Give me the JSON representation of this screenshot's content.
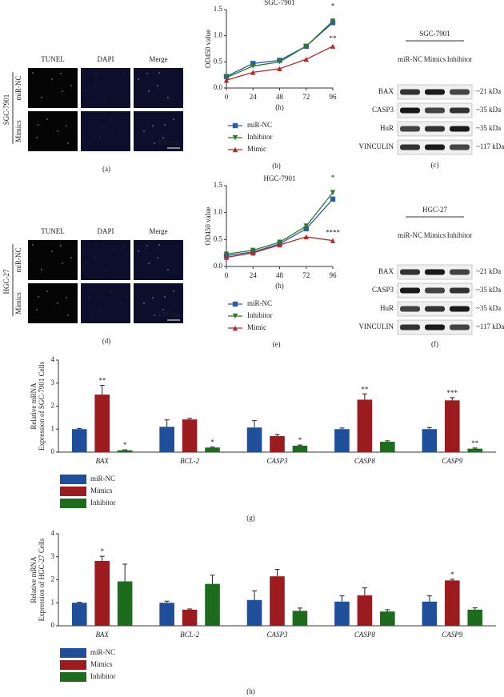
{
  "panels": [
    {
      "label": "(a)",
      "cell_line": "SGC-7901",
      "rows": [
        "miR-NC",
        "Mimics"
      ],
      "columns": [
        "TUNEL",
        "DAPI",
        "Merge"
      ],
      "scale_bar": "100 μm"
    },
    {
      "label": "(d)",
      "cell_line": "HGC-27",
      "rows": [
        "miR-NC",
        "Mimics"
      ],
      "columns": [
        "TUNEL",
        "DAPI",
        "Merge"
      ],
      "scale_bar": "100 μm"
    }
  ],
  "blots": [
    {
      "label": "(c)",
      "cell_line": "SGC-7901",
      "lanes": [
        "miR-NC",
        "Mimics",
        "Inhibitor"
      ],
      "proteins": [
        "BAX",
        "CASP3",
        "HuR",
        "VINCULIN"
      ],
      "sizes": [
        "~21 kDa",
        "~35 kDa",
        "~35 kDa",
        "~117 kDa"
      ]
    },
    {
      "label": "(f)",
      "cell_line": "HGC-27",
      "lanes": [
        "miR-NC",
        "Mimics",
        "Inhibitor"
      ],
      "proteins": [
        "BAX",
        "CASP3",
        "HuR",
        "VINCULIN"
      ],
      "sizes": [
        "~21 kDa",
        "~35 kDa",
        "~35 kDa",
        "~117 kDa"
      ]
    }
  ],
  "chart_data": [
    {
      "type": "line",
      "title": "SGC-7901",
      "panel_label": "(b)",
      "xlabel": "(h)",
      "ylabel": "OD450 value",
      "x": [
        0,
        24,
        48,
        72,
        96
      ],
      "xlim": [
        0,
        96
      ],
      "xticks": [
        0,
        24,
        48,
        72,
        96
      ],
      "ylim": [
        0,
        1.5
      ],
      "yticks": [
        {
          "value": 0,
          "label": "0.0"
        },
        0.5,
        {
          "value": 1,
          "label": "1.0"
        },
        1.5
      ],
      "series": [
        {
          "name": "miR-NC",
          "color": "#2b5ea7",
          "marker": "square",
          "values": [
            0.22,
            0.47,
            0.53,
            0.8,
            1.25
          ],
          "point_labels": [
            null,
            null,
            null,
            null,
            null
          ]
        },
        {
          "name": "Inhibitor",
          "color": "#2a7a2a",
          "marker": "triangle-down",
          "values": [
            0.2,
            0.42,
            0.5,
            0.8,
            1.28
          ],
          "point_labels": [
            null,
            null,
            null,
            null,
            "*"
          ]
        },
        {
          "name": "Mimic",
          "color": "#b22c2c",
          "marker": "triangle-up",
          "values": [
            0.15,
            0.3,
            0.37,
            0.55,
            0.8
          ],
          "point_labels": [
            null,
            null,
            null,
            null,
            "**"
          ]
        }
      ]
    },
    {
      "type": "line",
      "title": "HGC-7901",
      "panel_label": "(e)",
      "xlabel": "(h)",
      "ylabel": "OD450 value",
      "x": [
        0,
        24,
        48,
        72,
        96
      ],
      "xlim": [
        0,
        96
      ],
      "xticks": [
        0,
        24,
        48,
        72,
        96
      ],
      "ylim": [
        0,
        1.5
      ],
      "yticks": [
        {
          "value": 0,
          "label": "0.0"
        },
        0.5,
        {
          "value": 1,
          "label": "1.0"
        },
        1.5
      ],
      "series": [
        {
          "name": "miR-NC",
          "color": "#2b5ea7",
          "marker": "square",
          "values": [
            0.2,
            0.27,
            0.42,
            0.7,
            1.25
          ],
          "point_labels": [
            null,
            null,
            null,
            null,
            null
          ]
        },
        {
          "name": "Inhibitor",
          "color": "#2a7a2a",
          "marker": "triangle-down",
          "values": [
            0.23,
            0.3,
            0.45,
            0.75,
            1.37
          ],
          "point_labels": [
            null,
            null,
            null,
            null,
            "*"
          ]
        },
        {
          "name": "Mimic",
          "color": "#b22c2c",
          "marker": "triangle-up",
          "values": [
            0.17,
            0.25,
            0.4,
            0.55,
            0.48
          ],
          "point_labels": [
            null,
            null,
            null,
            null,
            "****"
          ]
        }
      ]
    },
    {
      "type": "bar",
      "panel_label": "(g)",
      "ylabel": [
        "Relative mRNA",
        "Expression of SGC-7901 Cells"
      ],
      "categories": [
        "BAX",
        "BCL-2",
        "CASP3",
        "CASP8",
        "CASP9"
      ],
      "ylim": [
        0,
        4
      ],
      "yticks": [
        0,
        1,
        2,
        3,
        4
      ],
      "series": [
        {
          "name": "miR-NC",
          "color": "#1f4e9a",
          "values": [
            1,
            1.1,
            1.07,
            1,
            1
          ],
          "errors": [
            0.03,
            0.3,
            0.3,
            0.05,
            0.07
          ],
          "point_labels": [
            null,
            null,
            null,
            null,
            null
          ]
        },
        {
          "name": "Mimics",
          "color": "#9b1b1e",
          "values": [
            2.5,
            1.42,
            0.7,
            2.28,
            2.25
          ],
          "errors": [
            0.4,
            0.05,
            0.07,
            0.25,
            0.12
          ],
          "point_labels": [
            "**",
            null,
            null,
            "**",
            "***"
          ]
        },
        {
          "name": "Inhibitor",
          "color": "#1d6b1d",
          "values": [
            0.08,
            0.2,
            0.28,
            0.45,
            0.15
          ],
          "errors": [
            0.02,
            0.02,
            0.03,
            0.04,
            0.03
          ],
          "point_labels": [
            "*",
            "*",
            "*",
            null,
            "**"
          ]
        }
      ]
    },
    {
      "type": "bar",
      "panel_label": "(h)",
      "ylabel": [
        "Relative mRNA",
        "Expression of HGC-27 Cells"
      ],
      "categories": [
        "BAX",
        "BCL-2",
        "CASP3",
        "CASP8",
        "CASP9"
      ],
      "ylim": [
        0,
        4
      ],
      "yticks": [
        0,
        1,
        2,
        3,
        4
      ],
      "series": [
        {
          "name": "miR-NC",
          "color": "#1f4e9a",
          "values": [
            1,
            1,
            1.12,
            1.05,
            1.05
          ],
          "errors": [
            0.02,
            0.07,
            0.4,
            0.25,
            0.25
          ],
          "point_labels": [
            null,
            null,
            null,
            null,
            null
          ]
        },
        {
          "name": "Mimics",
          "color": "#9b1b1e",
          "values": [
            2.82,
            0.7,
            2.15,
            1.32,
            1.97
          ],
          "errors": [
            0.2,
            0.03,
            0.3,
            0.33,
            0.05
          ],
          "point_labels": [
            "*",
            null,
            null,
            null,
            "*"
          ]
        },
        {
          "name": "Inhibitor",
          "color": "#1d6b1d",
          "values": [
            1.93,
            1.82,
            0.65,
            0.62,
            0.7
          ],
          "errors": [
            0.75,
            0.38,
            0.12,
            0.08,
            0.08
          ],
          "point_labels": [
            null,
            null,
            null,
            null,
            null
          ]
        }
      ]
    }
  ]
}
